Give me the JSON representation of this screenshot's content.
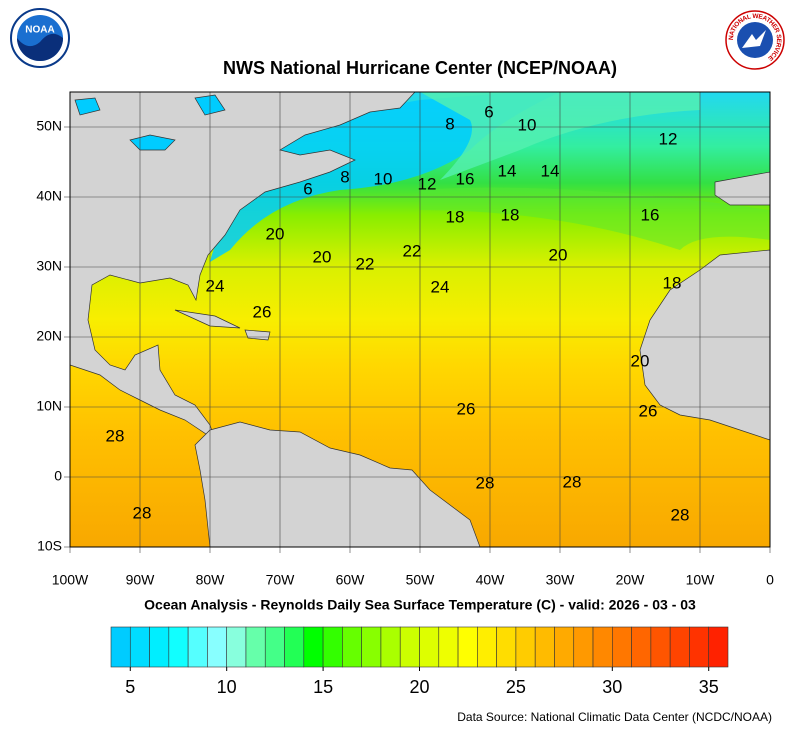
{
  "logos": {
    "noaa": "NOAA",
    "nws": "NATIONAL WEATHER SERVICE"
  },
  "title": "NWS National Hurricane Center (NCEP/NOAA)",
  "map": {
    "x_labels": [
      "100W",
      "90W",
      "80W",
      "70W",
      "60W",
      "50W",
      "40W",
      "30W",
      "20W",
      "10W",
      "0"
    ],
    "y_labels": [
      "50N",
      "40N",
      "30N",
      "20N",
      "10N",
      "0",
      "10S"
    ],
    "contour_labels": [
      "6",
      "8",
      "10",
      "12",
      "6",
      "8",
      "10",
      "12",
      "16",
      "14",
      "14",
      "18",
      "18",
      "16",
      "20",
      "20",
      "22",
      "22",
      "20",
      "24",
      "18",
      "24",
      "26",
      "20",
      "26",
      "26",
      "28",
      "28",
      "28",
      "28",
      "28"
    ]
  },
  "caption": "Ocean Analysis - Reynolds Daily Sea Surface Temperature (C) - valid: 2026 - 03 - 03",
  "colorbar": {
    "range": [
      4,
      36
    ],
    "ticks": [
      5,
      10,
      15,
      20,
      25,
      30,
      35
    ],
    "colors": [
      "#00ccff",
      "#00ddff",
      "#00eeff",
      "#11ffff",
      "#55ffff",
      "#88ffff",
      "#88ffdd",
      "#66ffaa",
      "#44ff88",
      "#22ff55",
      "#00ff00",
      "#33ff00",
      "#66ff00",
      "#88ff00",
      "#aaff00",
      "#ccff00",
      "#ddff00",
      "#eeff00",
      "#ffff00",
      "#ffee00",
      "#ffdd00",
      "#ffcc00",
      "#ffbb00",
      "#ffaa00",
      "#ff9900",
      "#ff8800",
      "#ff7700",
      "#ff6600",
      "#ff5500",
      "#ff4400",
      "#ff3300",
      "#ff2200"
    ]
  },
  "source": "Data Source: National Climatic Data Center (NCDC/NOAA)"
}
